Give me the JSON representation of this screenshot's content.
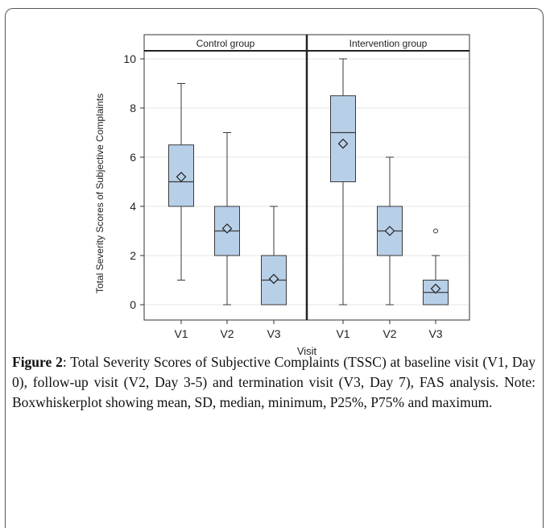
{
  "chart_data": {
    "type": "box",
    "ylabel": "Total Severity Scores of Subjective Complaints",
    "xlabel": "Visit",
    "ylim": [
      0,
      10
    ],
    "yticks": [
      0,
      2,
      4,
      6,
      8,
      10
    ],
    "grid": true,
    "panels": [
      {
        "title": "Control group",
        "boxes": [
          {
            "category": "V1",
            "min": 1,
            "q1": 4,
            "median": 5,
            "q3": 6.5,
            "max": 9,
            "mean": 5.2,
            "outliers": []
          },
          {
            "category": "V2",
            "min": 0,
            "q1": 2,
            "median": 3,
            "q3": 4,
            "max": 7,
            "mean": 3.1,
            "outliers": []
          },
          {
            "category": "V3",
            "min": 0,
            "q1": 0,
            "median": 1,
            "q3": 2,
            "max": 4,
            "mean": 1.05,
            "outliers": []
          }
        ]
      },
      {
        "title": "Intervention group",
        "boxes": [
          {
            "category": "V1",
            "min": 0,
            "q1": 5,
            "median": 7,
            "q3": 8.5,
            "max": 10,
            "mean": 6.55,
            "outliers": []
          },
          {
            "category": "V2",
            "min": 0,
            "q1": 2,
            "median": 3,
            "q3": 4,
            "max": 6,
            "mean": 3.0,
            "outliers": []
          },
          {
            "category": "V3",
            "min": 0,
            "q1": 0,
            "median": 0.5,
            "q3": 1,
            "max": 2,
            "mean": 0.65,
            "outliers": [
              3
            ]
          }
        ]
      }
    ],
    "colors": {
      "box_fill": "#b8cfe8",
      "box_stroke": "#3a3a3a",
      "grid": "#e6e6e6"
    }
  },
  "caption": {
    "label": "Figure 2",
    "text": ": Total Severity Scores of Subjective Complaints (TSSC) at baseline visit (V1, Day 0), follow-up visit (V2, Day 3-5) and termination visit (V3, Day 7), FAS analysis. Note: Boxwhiskerplot showing mean, SD, median, minimum, P25%, P75% and maximum."
  }
}
